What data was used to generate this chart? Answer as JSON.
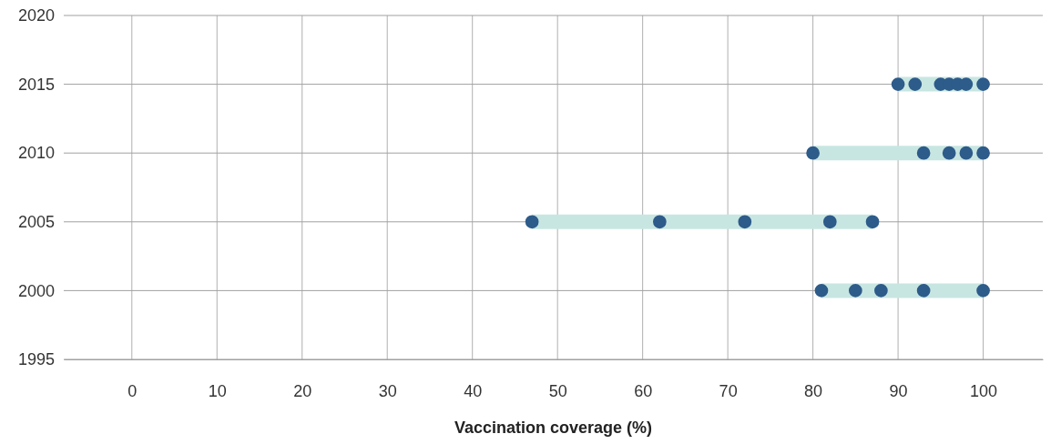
{
  "chart_data": {
    "type": "scatter",
    "xlabel": "Vaccination coverage (%)",
    "xlim": [
      -8,
      107
    ],
    "xticks": [
      0,
      10,
      20,
      30,
      40,
      50,
      60,
      70,
      80,
      90,
      100
    ],
    "ylim": [
      1995,
      2020
    ],
    "yticks": [
      1995,
      2000,
      2005,
      2010,
      2015,
      2020
    ],
    "grid": true,
    "series": [
      {
        "type": "line",
        "color": "#c8e6e1",
        "marker": "none",
        "x": [
          90,
          100
        ],
        "values": [
          2015,
          2015
        ]
      },
      {
        "type": "line",
        "color": "#c8e6e1",
        "marker": "none",
        "x": [
          80,
          100
        ],
        "values": [
          2010,
          2010
        ]
      },
      {
        "type": "line",
        "color": "#c8e6e1",
        "marker": "none",
        "x": [
          47,
          87
        ],
        "values": [
          2005,
          2005
        ]
      },
      {
        "type": "line",
        "color": "#c8e6e1",
        "marker": "none",
        "x": [
          81,
          100
        ],
        "values": [
          2000,
          2000
        ]
      },
      {
        "color": "#2d5b8a",
        "marker": "circle",
        "x": [
          90,
          92,
          95,
          96,
          97,
          98,
          100,
          80,
          93,
          96,
          98,
          100,
          47,
          62,
          72,
          82,
          87,
          81,
          85,
          88,
          93,
          100
        ],
        "values": [
          2015,
          2015,
          2015,
          2015,
          2015,
          2015,
          2015,
          2010,
          2010,
          2010,
          2010,
          2010,
          2005,
          2005,
          2005,
          2005,
          2005,
          2000,
          2000,
          2000,
          2000,
          2000
        ]
      }
    ]
  }
}
